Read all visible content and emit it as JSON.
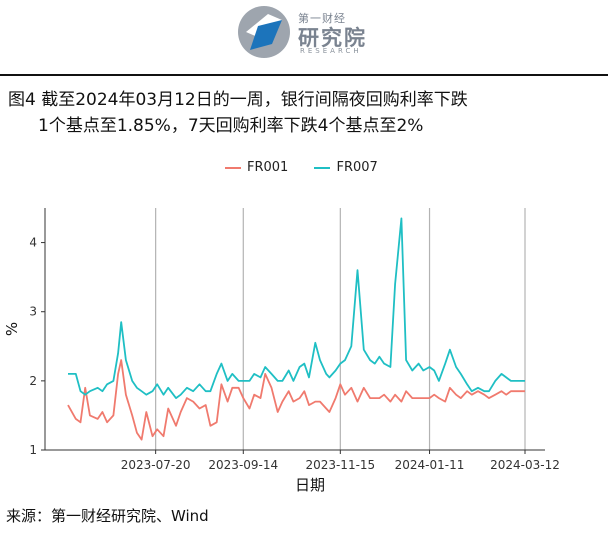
{
  "header": {
    "logo_small": "第一财经",
    "logo_big": "研究院",
    "logo_sub": "RESEARCH"
  },
  "caption": {
    "line1": "图4  截至2024年03月12日的一周，银行间隔夜回购利率下跌",
    "line2": "1个基点至1.85%，7天回购利率下跌4个基点至2%"
  },
  "source": "来源：第一财经研究院、Wind",
  "chart_data": {
    "type": "line",
    "xlabel": "日期",
    "ylabel": "%",
    "x_tick_labels": [
      "2023-07-20",
      "2023-09-14",
      "2023-11-15",
      "2024-01-11",
      "2024-03-12"
    ],
    "x_ticks": [
      "2023-07-20",
      "2023-09-14",
      "2023-11-15",
      "2024-01-11",
      "2024-03-12"
    ],
    "y_ticks": [
      1,
      2,
      3,
      4
    ],
    "ylim": [
      1,
      4.5
    ],
    "xlim": [
      "2023-05-25",
      "2024-03-12"
    ],
    "legend_position": "top",
    "grid": "vertical major lines only",
    "series": [
      {
        "name": "FR001",
        "color": "#F07A6E",
        "points": [
          [
            "2023-05-25",
            1.65
          ],
          [
            "2023-05-30",
            1.45
          ],
          [
            "2023-06-02",
            1.4
          ],
          [
            "2023-06-05",
            1.9
          ],
          [
            "2023-06-08",
            1.5
          ],
          [
            "2023-06-13",
            1.45
          ],
          [
            "2023-06-16",
            1.55
          ],
          [
            "2023-06-19",
            1.4
          ],
          [
            "2023-06-23",
            1.5
          ],
          [
            "2023-06-26",
            2.1
          ],
          [
            "2023-06-28",
            2.3
          ],
          [
            "2023-07-01",
            1.8
          ],
          [
            "2023-07-05",
            1.5
          ],
          [
            "2023-07-08",
            1.25
          ],
          [
            "2023-07-11",
            1.15
          ],
          [
            "2023-07-14",
            1.55
          ],
          [
            "2023-07-18",
            1.2
          ],
          [
            "2023-07-21",
            1.3
          ],
          [
            "2023-07-25",
            1.2
          ],
          [
            "2023-07-28",
            1.6
          ],
          [
            "2023-08-02",
            1.35
          ],
          [
            "2023-08-05",
            1.55
          ],
          [
            "2023-08-09",
            1.75
          ],
          [
            "2023-08-13",
            1.7
          ],
          [
            "2023-08-17",
            1.6
          ],
          [
            "2023-08-21",
            1.65
          ],
          [
            "2023-08-24",
            1.35
          ],
          [
            "2023-08-28",
            1.4
          ],
          [
            "2023-08-31",
            1.95
          ],
          [
            "2023-09-04",
            1.7
          ],
          [
            "2023-09-07",
            1.9
          ],
          [
            "2023-09-11",
            1.9
          ],
          [
            "2023-09-14",
            1.75
          ],
          [
            "2023-09-18",
            1.6
          ],
          [
            "2023-09-21",
            1.8
          ],
          [
            "2023-09-25",
            1.75
          ],
          [
            "2023-09-28",
            2.1
          ],
          [
            "2023-10-02",
            1.9
          ],
          [
            "2023-10-06",
            1.55
          ],
          [
            "2023-10-09",
            1.7
          ],
          [
            "2023-10-13",
            1.85
          ],
          [
            "2023-10-16",
            1.7
          ],
          [
            "2023-10-20",
            1.75
          ],
          [
            "2023-10-23",
            1.85
          ],
          [
            "2023-10-26",
            1.65
          ],
          [
            "2023-10-30",
            1.7
          ],
          [
            "2023-11-02",
            1.7
          ],
          [
            "2023-11-06",
            1.6
          ],
          [
            "2023-11-08",
            1.55
          ],
          [
            "2023-11-12",
            1.75
          ],
          [
            "2023-11-15",
            1.95
          ],
          [
            "2023-11-18",
            1.8
          ],
          [
            "2023-11-22",
            1.9
          ],
          [
            "2023-11-26",
            1.7
          ],
          [
            "2023-11-30",
            1.9
          ],
          [
            "2023-12-04",
            1.75
          ],
          [
            "2023-12-07",
            1.75
          ],
          [
            "2023-12-10",
            1.75
          ],
          [
            "2023-12-13",
            1.8
          ],
          [
            "2023-12-17",
            1.7
          ],
          [
            "2023-12-20",
            1.8
          ],
          [
            "2023-12-24",
            1.7
          ],
          [
            "2023-12-27",
            1.85
          ],
          [
            "2023-12-31",
            1.75
          ],
          [
            "2024-01-04",
            1.75
          ],
          [
            "2024-01-07",
            1.75
          ],
          [
            "2024-01-11",
            1.75
          ],
          [
            "2024-01-14",
            1.8
          ],
          [
            "2024-01-17",
            1.75
          ],
          [
            "2024-01-21",
            1.7
          ],
          [
            "2024-01-24",
            1.9
          ],
          [
            "2024-01-28",
            1.8
          ],
          [
            "2024-01-31",
            1.75
          ],
          [
            "2024-02-04",
            1.85
          ],
          [
            "2024-02-07",
            1.8
          ],
          [
            "2024-02-11",
            1.85
          ],
          [
            "2024-02-15",
            1.8
          ],
          [
            "2024-02-18",
            1.75
          ],
          [
            "2024-02-22",
            1.8
          ],
          [
            "2024-02-26",
            1.85
          ],
          [
            "2024-02-29",
            1.8
          ],
          [
            "2024-03-03",
            1.85
          ],
          [
            "2024-03-07",
            1.85
          ],
          [
            "2024-03-12",
            1.85
          ]
        ]
      },
      {
        "name": "FR007",
        "color": "#1FBFC4",
        "points": [
          [
            "2023-05-25",
            2.1
          ],
          [
            "2023-05-30",
            2.1
          ],
          [
            "2023-06-02",
            1.85
          ],
          [
            "2023-06-05",
            1.8
          ],
          [
            "2023-06-08",
            1.85
          ],
          [
            "2023-06-13",
            1.9
          ],
          [
            "2023-06-16",
            1.85
          ],
          [
            "2023-06-19",
            1.95
          ],
          [
            "2023-06-23",
            2.0
          ],
          [
            "2023-06-26",
            2.4
          ],
          [
            "2023-06-28",
            2.85
          ],
          [
            "2023-07-01",
            2.3
          ],
          [
            "2023-07-05",
            2.0
          ],
          [
            "2023-07-08",
            1.9
          ],
          [
            "2023-07-11",
            1.85
          ],
          [
            "2023-07-14",
            1.8
          ],
          [
            "2023-07-18",
            1.85
          ],
          [
            "2023-07-21",
            1.95
          ],
          [
            "2023-07-25",
            1.8
          ],
          [
            "2023-07-28",
            1.9
          ],
          [
            "2023-08-02",
            1.75
          ],
          [
            "2023-08-05",
            1.8
          ],
          [
            "2023-08-09",
            1.9
          ],
          [
            "2023-08-13",
            1.85
          ],
          [
            "2023-08-17",
            1.95
          ],
          [
            "2023-08-21",
            1.85
          ],
          [
            "2023-08-24",
            1.85
          ],
          [
            "2023-08-28",
            2.1
          ],
          [
            "2023-08-31",
            2.25
          ],
          [
            "2023-09-04",
            2.0
          ],
          [
            "2023-09-07",
            2.1
          ],
          [
            "2023-09-11",
            2.0
          ],
          [
            "2023-09-14",
            2.0
          ],
          [
            "2023-09-18",
            2.0
          ],
          [
            "2023-09-21",
            2.1
          ],
          [
            "2023-09-25",
            2.05
          ],
          [
            "2023-09-28",
            2.2
          ],
          [
            "2023-10-02",
            2.1
          ],
          [
            "2023-10-06",
            2.0
          ],
          [
            "2023-10-09",
            2.0
          ],
          [
            "2023-10-13",
            2.15
          ],
          [
            "2023-10-16",
            2.0
          ],
          [
            "2023-10-20",
            2.2
          ],
          [
            "2023-10-23",
            2.25
          ],
          [
            "2023-10-26",
            2.05
          ],
          [
            "2023-10-30",
            2.55
          ],
          [
            "2023-11-02",
            2.3
          ],
          [
            "2023-11-06",
            2.1
          ],
          [
            "2023-11-08",
            2.05
          ],
          [
            "2023-11-12",
            2.15
          ],
          [
            "2023-11-15",
            2.25
          ],
          [
            "2023-11-18",
            2.3
          ],
          [
            "2023-11-22",
            2.5
          ],
          [
            "2023-11-26",
            3.6
          ],
          [
            "2023-11-30",
            2.45
          ],
          [
            "2023-12-04",
            2.3
          ],
          [
            "2023-12-07",
            2.25
          ],
          [
            "2023-12-10",
            2.35
          ],
          [
            "2023-12-13",
            2.25
          ],
          [
            "2023-12-17",
            2.2
          ],
          [
            "2023-12-20",
            3.4
          ],
          [
            "2023-12-24",
            4.35
          ],
          [
            "2023-12-27",
            2.3
          ],
          [
            "2023-12-31",
            2.15
          ],
          [
            "2024-01-04",
            2.25
          ],
          [
            "2024-01-07",
            2.15
          ],
          [
            "2024-01-11",
            2.2
          ],
          [
            "2024-01-14",
            2.15
          ],
          [
            "2024-01-17",
            2.0
          ],
          [
            "2024-01-21",
            2.25
          ],
          [
            "2024-01-24",
            2.45
          ],
          [
            "2024-01-28",
            2.2
          ],
          [
            "2024-01-31",
            2.1
          ],
          [
            "2024-02-04",
            1.95
          ],
          [
            "2024-02-07",
            1.85
          ],
          [
            "2024-02-11",
            1.9
          ],
          [
            "2024-02-15",
            1.85
          ],
          [
            "2024-02-18",
            1.85
          ],
          [
            "2024-02-22",
            2.0
          ],
          [
            "2024-02-26",
            2.1
          ],
          [
            "2024-02-29",
            2.05
          ],
          [
            "2024-03-03",
            2.0
          ],
          [
            "2024-03-07",
            2.0
          ],
          [
            "2024-03-12",
            2.0
          ]
        ]
      }
    ]
  }
}
